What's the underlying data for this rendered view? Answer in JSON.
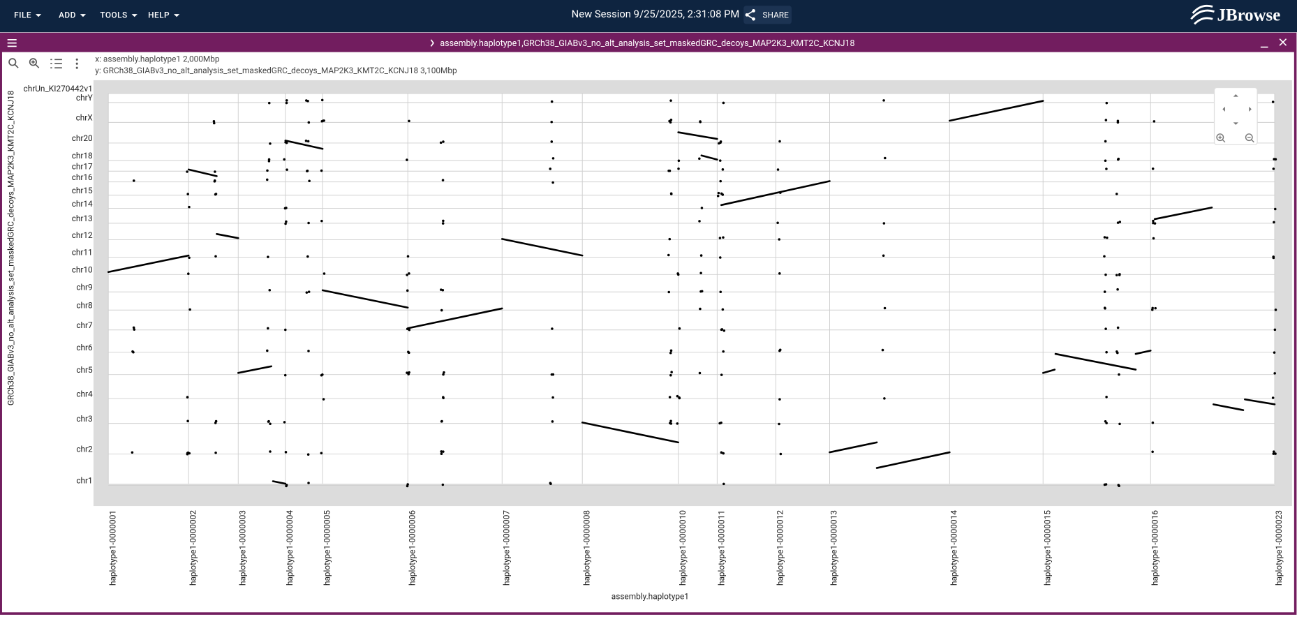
{
  "menu": [
    "FILE",
    "ADD",
    "TOOLS",
    "HELP"
  ],
  "session_title": "New Session 9/25/2025, 2:31:08 PM",
  "share": "SHARE",
  "logo": "JBrowse",
  "view": {
    "title": "assembly.haplotype1,GRCh38_GIABv3_no_alt_analysis_set_maskedGRC_decoys_MAP2K3_KMT2C_KCNJ18",
    "x_info": "x: assembly.haplotype1 2,000Mbp",
    "y_info": "y: GRCh38_GIABv3_no_alt_analysis_set_maskedGRC_decoys_MAP2K3_KMT2C_KCNJ18 3,100Mbp",
    "y_axis_title": "GRCh38_GIABv3_no_alt_analysis_set_maskedGRC_decoys_MAP2K3_KMT2C_KCNJ18",
    "x_axis_title": "assembly.haplotype1",
    "y_labels": [
      "chrUn_KI270442v1",
      "chrY",
      "chrX",
      "chr20",
      "chr18",
      "chr17",
      "chr16",
      "chr15",
      "chr14",
      "chr13",
      "chr12",
      "chr11",
      "chr10",
      "chr9",
      "chr8",
      "chr7",
      "chr6",
      "chr5",
      "chr4",
      "chr3",
      "chr2",
      "chr1"
    ],
    "x_labels": [
      "haplotype1-0000001",
      "haplotype1-0000002",
      "haplotype1-0000003",
      "haplotype1-0000004",
      "haplotype1-0000005",
      "haplotype1-0000006",
      "haplotype1-0000007",
      "haplotype1-0000008",
      "haplotype1-0000010",
      "haplotype1-0000011",
      "haplotype1-0000012",
      "haplotype1-0000013",
      "haplotype1-0000014",
      "haplotype1-0000015",
      "haplotype1-0000016",
      "haplotype1-0000023"
    ]
  }
}
